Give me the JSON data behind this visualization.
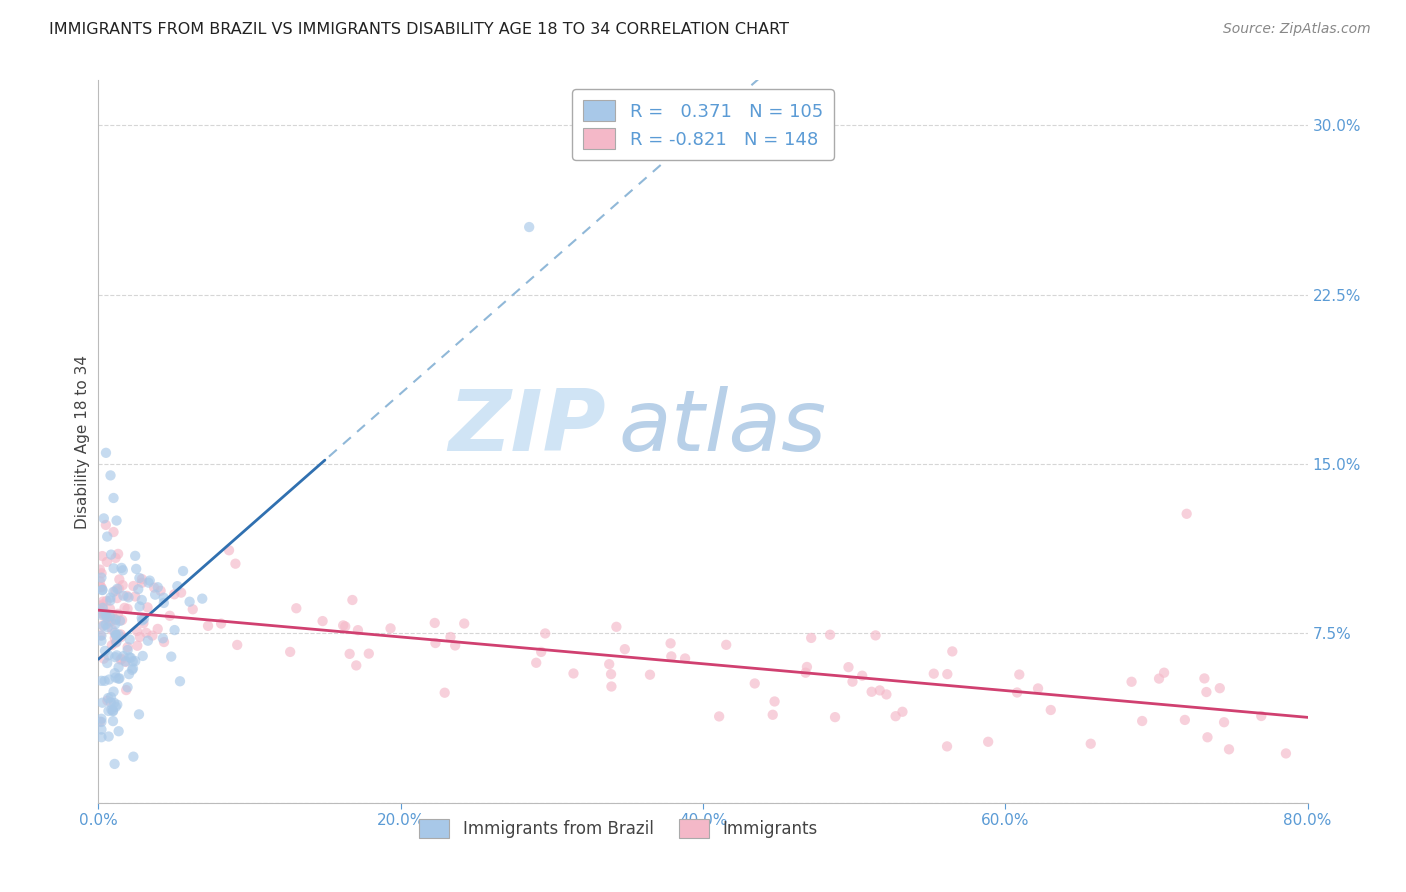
{
  "title": "IMMIGRANTS FROM BRAZIL VS IMMIGRANTS DISABILITY AGE 18 TO 34 CORRELATION CHART",
  "source": "Source: ZipAtlas.com",
  "ylabel": "Disability Age 18 to 34",
  "blue_label": "Immigrants from Brazil",
  "pink_label": "Immigrants",
  "blue_R": 0.371,
  "blue_N": 105,
  "pink_R": -0.821,
  "pink_N": 148,
  "blue_color": "#a8c8e8",
  "pink_color": "#f4b8c8",
  "blue_line_color": "#3070b0",
  "pink_line_color": "#d04070",
  "dash_line_color": "#90b8d8",
  "axis_color": "#5b9bd5",
  "tick_label_color": "#5b9bd5",
  "background_color": "#ffffff",
  "grid_color": "#cccccc",
  "xlim": [
    0.0,
    0.8
  ],
  "ylim": [
    0.0,
    0.32
  ],
  "yticks": [
    0.0,
    0.075,
    0.15,
    0.225,
    0.3
  ],
  "xticks": [
    0.0,
    0.2,
    0.4,
    0.6,
    0.8
  ],
  "watermark_zip": "ZIP",
  "watermark_atlas": "atlas",
  "watermark_color_zip": "#c8ddf0",
  "watermark_color_atlas": "#a8c8e0"
}
